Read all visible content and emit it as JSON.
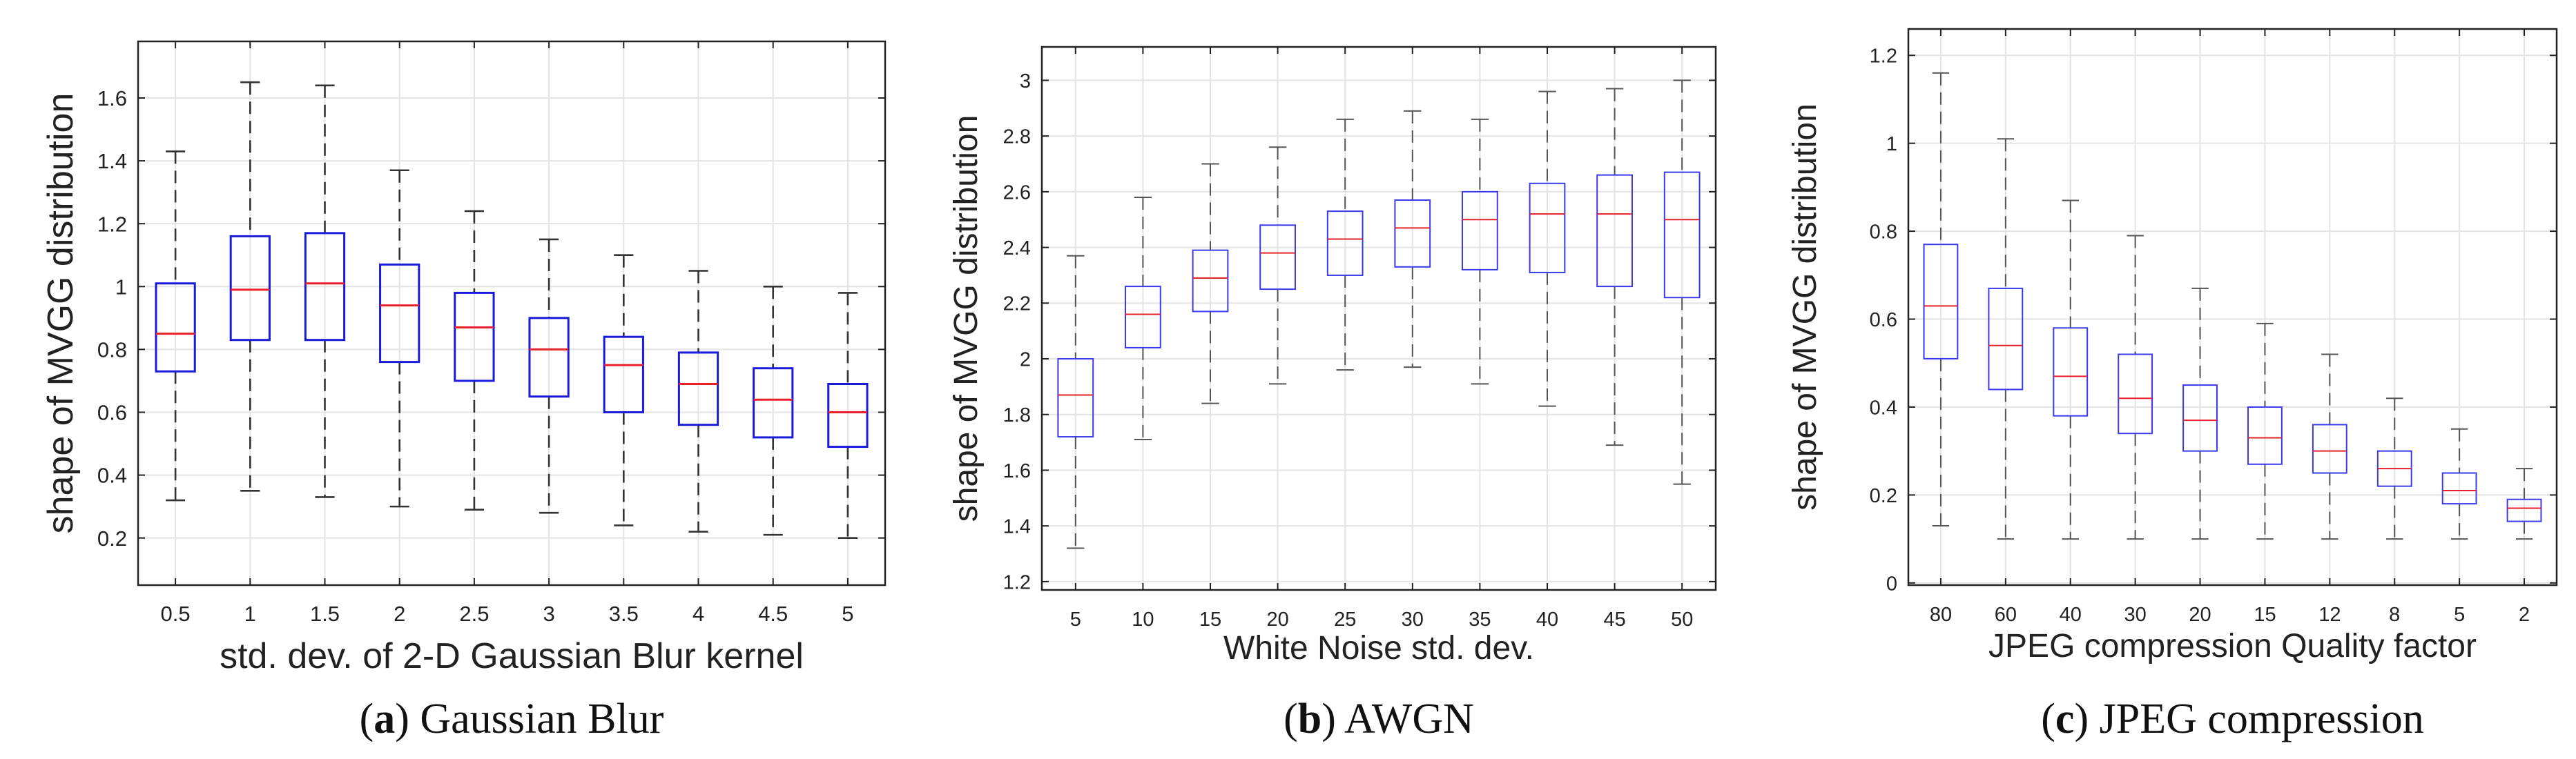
{
  "chart_data": [
    {
      "type": "box",
      "caption_letter": "a",
      "caption_text": " Gaussian Blur",
      "xlabel": "std. dev. of 2-D Gaussian Blur kernel",
      "ylabel": "shape of MVGG distribution",
      "ylim": [
        0.05,
        1.78
      ],
      "yticks": [
        0.2,
        0.4,
        0.6,
        0.8,
        1,
        1.2,
        1.4,
        1.6
      ],
      "ytick_labels": [
        "0.2",
        "0.4",
        "0.6",
        "0.8",
        "1",
        "1.2",
        "1.4",
        "1.6"
      ],
      "grid": true,
      "box_color": "#1a1adb",
      "whisker_color": "#333333",
      "median_color": "#e8202a",
      "categories": [
        "0.5",
        "1",
        "1.5",
        "2",
        "2.5",
        "3",
        "3.5",
        "4",
        "4.5",
        "5"
      ],
      "boxes": [
        {
          "min": 0.32,
          "q1": 0.73,
          "median": 0.85,
          "q3": 1.01,
          "max": 1.43
        },
        {
          "min": 0.35,
          "q1": 0.83,
          "median": 0.99,
          "q3": 1.16,
          "max": 1.65
        },
        {
          "min": 0.33,
          "q1": 0.83,
          "median": 1.01,
          "q3": 1.17,
          "max": 1.64
        },
        {
          "min": 0.3,
          "q1": 0.76,
          "median": 0.94,
          "q3": 1.07,
          "max": 1.37
        },
        {
          "min": 0.29,
          "q1": 0.7,
          "median": 0.87,
          "q3": 0.98,
          "max": 1.24
        },
        {
          "min": 0.28,
          "q1": 0.65,
          "median": 0.8,
          "q3": 0.9,
          "max": 1.15
        },
        {
          "min": 0.24,
          "q1": 0.6,
          "median": 0.75,
          "q3": 0.84,
          "max": 1.1
        },
        {
          "min": 0.22,
          "q1": 0.56,
          "median": 0.69,
          "q3": 0.79,
          "max": 1.05
        },
        {
          "min": 0.21,
          "q1": 0.52,
          "median": 0.64,
          "q3": 0.74,
          "max": 1.0
        },
        {
          "min": 0.2,
          "q1": 0.49,
          "median": 0.6,
          "q3": 0.69,
          "max": 0.98
        }
      ]
    },
    {
      "type": "box",
      "caption_letter": "b",
      "caption_text": " AWGN",
      "xlabel": "White Noise std. dev.",
      "ylabel": "shape of MVGG distribution",
      "ylim": [
        1.17,
        3.12
      ],
      "yticks": [
        1.2,
        1.4,
        1.6,
        1.8,
        2,
        2.2,
        2.4,
        2.6,
        2.8,
        3
      ],
      "ytick_labels": [
        "1.2",
        "1.4",
        "1.6",
        "1.8",
        "2",
        "2.2",
        "2.4",
        "2.6",
        "2.8",
        "3"
      ],
      "grid": true,
      "box_color": "#3a3aee",
      "whisker_color": "#555555",
      "median_color": "#e8202a",
      "categories": [
        "5",
        "10",
        "15",
        "20",
        "25",
        "30",
        "35",
        "40",
        "45",
        "50"
      ],
      "boxes": [
        {
          "min": 1.32,
          "q1": 1.72,
          "median": 1.87,
          "q3": 2.0,
          "max": 2.37
        },
        {
          "min": 1.71,
          "q1": 2.04,
          "median": 2.16,
          "q3": 2.26,
          "max": 2.58
        },
        {
          "min": 1.84,
          "q1": 2.17,
          "median": 2.29,
          "q3": 2.39,
          "max": 2.7
        },
        {
          "min": 1.91,
          "q1": 2.25,
          "median": 2.38,
          "q3": 2.48,
          "max": 2.76
        },
        {
          "min": 1.96,
          "q1": 2.3,
          "median": 2.43,
          "q3": 2.53,
          "max": 2.86
        },
        {
          "min": 1.97,
          "q1": 2.33,
          "median": 2.47,
          "q3": 2.57,
          "max": 2.89
        },
        {
          "min": 1.91,
          "q1": 2.32,
          "median": 2.5,
          "q3": 2.6,
          "max": 2.86
        },
        {
          "min": 1.83,
          "q1": 2.31,
          "median": 2.52,
          "q3": 2.63,
          "max": 2.96
        },
        {
          "min": 1.69,
          "q1": 2.26,
          "median": 2.52,
          "q3": 2.66,
          "max": 2.97
        },
        {
          "min": 1.55,
          "q1": 2.22,
          "median": 2.5,
          "q3": 2.67,
          "max": 3.0
        }
      ]
    },
    {
      "type": "box",
      "caption_letter": "c",
      "caption_text": " JPEG compression",
      "xlabel": "JPEG compression Quality factor",
      "ylabel": "shape of MVGG distribution",
      "ylim": [
        -0.005,
        1.26
      ],
      "yticks": [
        0,
        0.2,
        0.4,
        0.6,
        0.8,
        1,
        1.2
      ],
      "ytick_labels": [
        "0",
        "0.2",
        "0.4",
        "0.6",
        "0.8",
        "1",
        "1.2"
      ],
      "grid": true,
      "box_color": "#3a3aee",
      "whisker_color": "#555555",
      "median_color": "#e8202a",
      "categories": [
        "80",
        "60",
        "40",
        "30",
        "20",
        "15",
        "12",
        "8",
        "5",
        "2"
      ],
      "boxes": [
        {
          "min": 0.13,
          "q1": 0.51,
          "median": 0.63,
          "q3": 0.77,
          "max": 1.16
        },
        {
          "min": 0.1,
          "q1": 0.44,
          "median": 0.54,
          "q3": 0.67,
          "max": 1.01
        },
        {
          "min": 0.1,
          "q1": 0.38,
          "median": 0.47,
          "q3": 0.58,
          "max": 0.87
        },
        {
          "min": 0.1,
          "q1": 0.34,
          "median": 0.42,
          "q3": 0.52,
          "max": 0.79
        },
        {
          "min": 0.1,
          "q1": 0.3,
          "median": 0.37,
          "q3": 0.45,
          "max": 0.67
        },
        {
          "min": 0.1,
          "q1": 0.27,
          "median": 0.33,
          "q3": 0.4,
          "max": 0.59
        },
        {
          "min": 0.1,
          "q1": 0.25,
          "median": 0.3,
          "q3": 0.36,
          "max": 0.52
        },
        {
          "min": 0.1,
          "q1": 0.22,
          "median": 0.26,
          "q3": 0.3,
          "max": 0.42
        },
        {
          "min": 0.1,
          "q1": 0.18,
          "median": 0.21,
          "q3": 0.25,
          "max": 0.35
        },
        {
          "min": 0.1,
          "q1": 0.14,
          "median": 0.17,
          "q3": 0.19,
          "max": 0.26
        }
      ]
    }
  ]
}
